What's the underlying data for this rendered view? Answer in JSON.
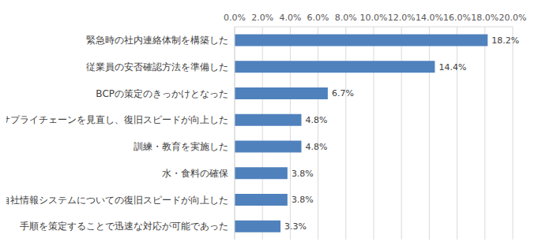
{
  "chart_data": {
    "type": "bar",
    "orientation": "horizontal",
    "categories": [
      "緊急時の社内連絡体制を構築した",
      "従業員の安否確認方法を準備した",
      "BCPの策定のきっかけとなった",
      "サプライチェーンを見直し、復旧スピードが向上した",
      "訓練・教育を実施した",
      "水・食料の確保",
      "自社情報システムについての復旧スピードが向上した",
      "手順を策定することで迅速な対応が可能であった"
    ],
    "values": [
      18.2,
      14.4,
      6.7,
      4.8,
      4.8,
      3.8,
      3.8,
      3.3
    ],
    "value_labels": [
      "18.2%",
      "14.4%",
      "6.7%",
      "4.8%",
      "4.8%",
      "3.8%",
      "3.8%",
      "3.3%"
    ],
    "data_labels": true,
    "color": "#4f81bd",
    "xlim": [
      0,
      20
    ],
    "xticks": [
      {
        "value": 0,
        "label": "0.0%"
      },
      {
        "value": 2,
        "label": "2.0%"
      },
      {
        "value": 4,
        "label": "4.0%"
      },
      {
        "value": 6,
        "label": "6.0%"
      },
      {
        "value": 8,
        "label": "8.0%"
      },
      {
        "value": 10,
        "label": "10.0%"
      },
      {
        "value": 12,
        "label": "12.0%"
      },
      {
        "value": 14,
        "label": "14.0%"
      },
      {
        "value": 16,
        "label": "16.0%"
      },
      {
        "value": 18,
        "label": "18.0%"
      },
      {
        "value": 20,
        "label": "20.0%"
      }
    ],
    "grid": true
  }
}
